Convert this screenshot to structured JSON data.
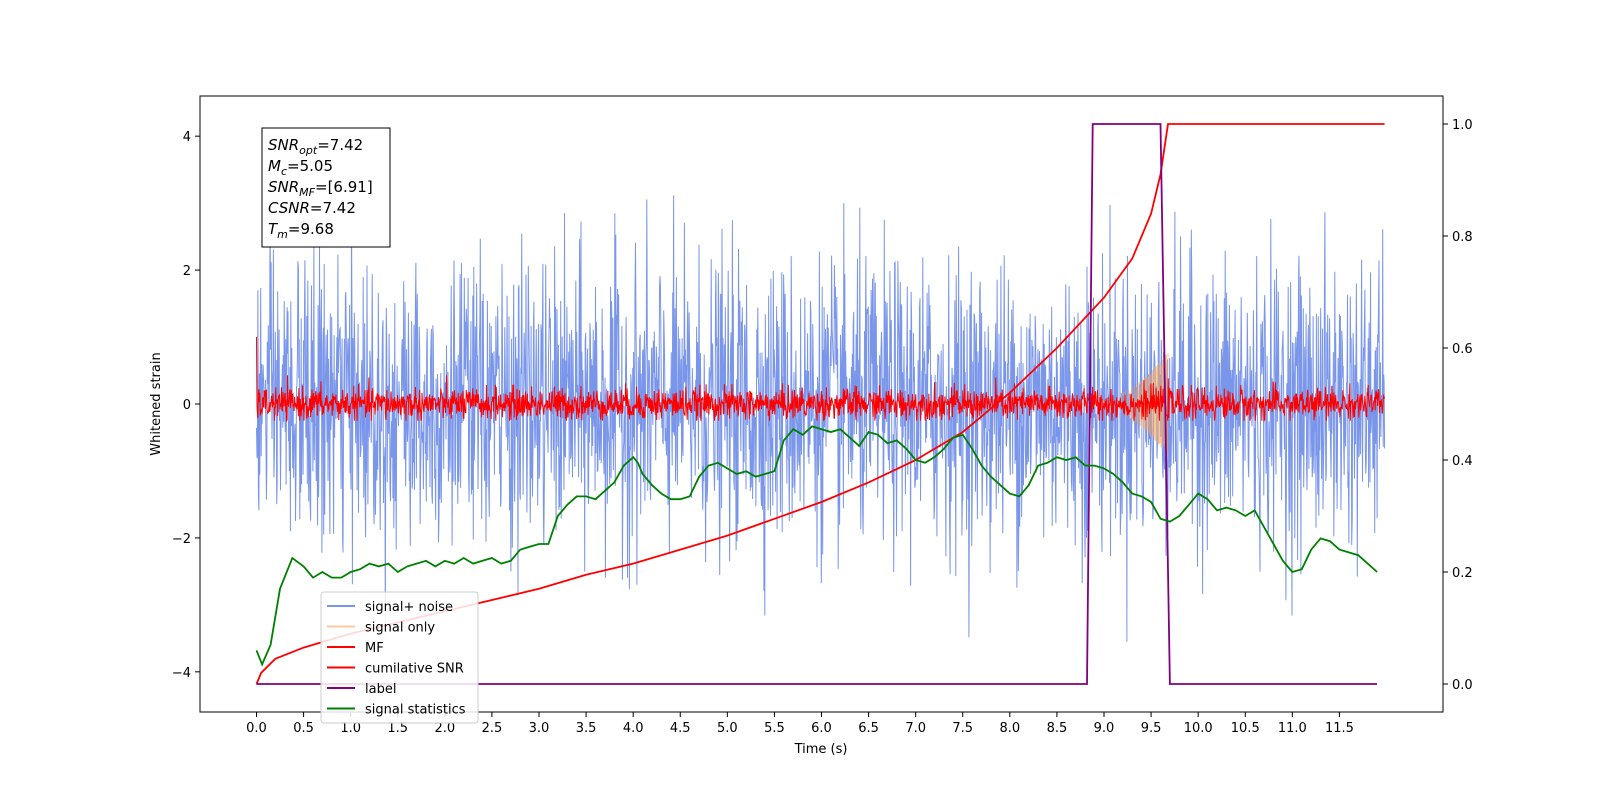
{
  "chart_data": {
    "type": "line",
    "xlabel": "Time (s)",
    "ylabel": "Whitened strain",
    "xlim": [
      -0.6,
      12.6
    ],
    "ylim": [
      -4.6,
      4.6
    ],
    "y2lim": [
      -0.05,
      1.05
    ],
    "x_ticks": [
      0.0,
      0.5,
      1.0,
      1.5,
      2.0,
      2.5,
      3.0,
      3.5,
      4.0,
      4.5,
      5.0,
      5.5,
      6.0,
      6.5,
      7.0,
      7.5,
      8.0,
      8.5,
      9.0,
      9.5,
      10.0,
      10.5,
      11.0,
      11.5
    ],
    "x_tick_labels": [
      "0.0",
      "0.5",
      "1.0",
      "1.5",
      "2.0",
      "2.5",
      "3.0",
      "3.5",
      "4.0",
      "4.5",
      "5.0",
      "5.5",
      "6.0",
      "6.5",
      "7.0",
      "7.5",
      "8.0",
      "8.5",
      "9.0",
      "9.5",
      "10.0",
      "10.5",
      "11.0",
      "11.5"
    ],
    "y_ticks": [
      -4,
      -2,
      0,
      2,
      4
    ],
    "y_tick_labels": [
      "−4",
      "−2",
      "0",
      "2",
      "4"
    ],
    "y2_ticks": [
      0.0,
      0.2,
      0.4,
      0.6,
      0.8,
      1.0
    ],
    "y2_tick_labels": [
      "0.0",
      "0.2",
      "0.4",
      "0.6",
      "0.8",
      "1.0"
    ],
    "grid": false,
    "legend_position": "lower-left",
    "annotation": [
      {
        "sym": "SNR",
        "sub": "opt",
        "val": "=7.42"
      },
      {
        "sym": "M",
        "sub": "c",
        "val": "=5.05"
      },
      {
        "sym": "SNR",
        "sub": "MF",
        "val": "=[6.91]"
      },
      {
        "sym": "CSNR",
        "sub": "",
        "val": "=7.42"
      },
      {
        "sym": "T",
        "sub": "m",
        "val": "=9.68"
      }
    ],
    "series": [
      {
        "name": "signal+ noise",
        "axis": "left",
        "color": "#4169e1",
        "alpha": 0.7,
        "kind": "noise",
        "t_start": 0.0,
        "t_end": 11.98,
        "amplitude_std": 1.05,
        "range": [
          -4.1,
          4.2
        ]
      },
      {
        "name": "signal only",
        "axis": "left",
        "color": "#f4a460",
        "alpha": 0.6,
        "kind": "chirp",
        "t_start": 8.5,
        "t_end": 9.68,
        "peak_amplitude": 0.8
      },
      {
        "name": "MF",
        "axis": "left",
        "color": "#ff0000",
        "kind": "noise",
        "t_start": 0.0,
        "t_end": 11.98,
        "amplitude_std": 0.12,
        "range": [
          -0.25,
          1.0
        ]
      },
      {
        "name": "cumilative SNR",
        "axis": "right",
        "color": "#ff0000",
        "x": [
          0.0,
          0.05,
          0.2,
          0.5,
          1.0,
          1.5,
          2.0,
          2.5,
          3.0,
          3.5,
          4.0,
          4.5,
          5.0,
          5.5,
          6.0,
          6.5,
          7.0,
          7.5,
          8.0,
          8.5,
          9.0,
          9.3,
          9.5,
          9.6,
          9.68,
          11.98
        ],
        "y": [
          0.0,
          0.02,
          0.045,
          0.065,
          0.09,
          0.11,
          0.13,
          0.15,
          0.17,
          0.195,
          0.215,
          0.24,
          0.265,
          0.295,
          0.325,
          0.36,
          0.4,
          0.45,
          0.52,
          0.6,
          0.69,
          0.76,
          0.84,
          0.91,
          1.0,
          1.0
        ]
      },
      {
        "name": "label",
        "axis": "right",
        "color": "#800080",
        "x": [
          0.0,
          8.82,
          8.88,
          9.6,
          9.7,
          11.9
        ],
        "y": [
          0.0,
          0.0,
          1.0,
          1.0,
          0.0,
          0.0
        ]
      },
      {
        "name": "signal statistics",
        "axis": "right",
        "color": "#008000",
        "x": [
          0.0,
          0.06,
          0.15,
          0.25,
          0.38,
          0.5,
          0.6,
          0.7,
          0.8,
          0.9,
          1.0,
          1.1,
          1.2,
          1.3,
          1.4,
          1.5,
          1.6,
          1.7,
          1.8,
          1.9,
          2.0,
          2.1,
          2.2,
          2.3,
          2.4,
          2.5,
          2.6,
          2.7,
          2.8,
          2.9,
          3.0,
          3.1,
          3.2,
          3.3,
          3.4,
          3.5,
          3.6,
          3.7,
          3.8,
          3.9,
          4.0,
          4.05,
          4.1,
          4.2,
          4.3,
          4.4,
          4.5,
          4.6,
          4.7,
          4.8,
          4.9,
          5.0,
          5.1,
          5.2,
          5.3,
          5.4,
          5.5,
          5.6,
          5.7,
          5.8,
          5.9,
          6.0,
          6.1,
          6.2,
          6.3,
          6.4,
          6.5,
          6.6,
          6.7,
          6.8,
          6.9,
          7.0,
          7.1,
          7.2,
          7.3,
          7.4,
          7.5,
          7.6,
          7.7,
          7.8,
          7.9,
          8.0,
          8.1,
          8.2,
          8.3,
          8.4,
          8.5,
          8.6,
          8.7,
          8.8,
          8.9,
          9.0,
          9.1,
          9.2,
          9.3,
          9.4,
          9.5,
          9.6,
          9.7,
          9.8,
          9.9,
          10.0,
          10.1,
          10.2,
          10.3,
          10.4,
          10.5,
          10.6,
          10.7,
          10.8,
          10.9,
          11.0,
          11.1,
          11.2,
          11.3,
          11.4,
          11.5,
          11.6,
          11.7,
          11.8,
          11.9
        ],
        "y": [
          0.06,
          0.035,
          0.07,
          0.17,
          0.225,
          0.21,
          0.19,
          0.2,
          0.19,
          0.19,
          0.2,
          0.205,
          0.215,
          0.21,
          0.215,
          0.2,
          0.21,
          0.215,
          0.22,
          0.21,
          0.22,
          0.215,
          0.225,
          0.215,
          0.22,
          0.225,
          0.215,
          0.22,
          0.24,
          0.245,
          0.25,
          0.25,
          0.3,
          0.32,
          0.335,
          0.335,
          0.33,
          0.345,
          0.36,
          0.39,
          0.405,
          0.395,
          0.375,
          0.355,
          0.34,
          0.33,
          0.33,
          0.335,
          0.37,
          0.39,
          0.395,
          0.385,
          0.375,
          0.38,
          0.37,
          0.375,
          0.38,
          0.435,
          0.455,
          0.445,
          0.46,
          0.455,
          0.45,
          0.455,
          0.44,
          0.425,
          0.45,
          0.445,
          0.43,
          0.435,
          0.42,
          0.4,
          0.395,
          0.405,
          0.42,
          0.44,
          0.445,
          0.42,
          0.39,
          0.37,
          0.355,
          0.34,
          0.335,
          0.355,
          0.39,
          0.395,
          0.405,
          0.4,
          0.405,
          0.39,
          0.39,
          0.385,
          0.375,
          0.36,
          0.34,
          0.335,
          0.325,
          0.295,
          0.29,
          0.3,
          0.32,
          0.34,
          0.33,
          0.31,
          0.315,
          0.31,
          0.3,
          0.31,
          0.28,
          0.25,
          0.22,
          0.2,
          0.205,
          0.24,
          0.26,
          0.255,
          0.24,
          0.235,
          0.23,
          0.215,
          0.2
        ]
      }
    ]
  }
}
